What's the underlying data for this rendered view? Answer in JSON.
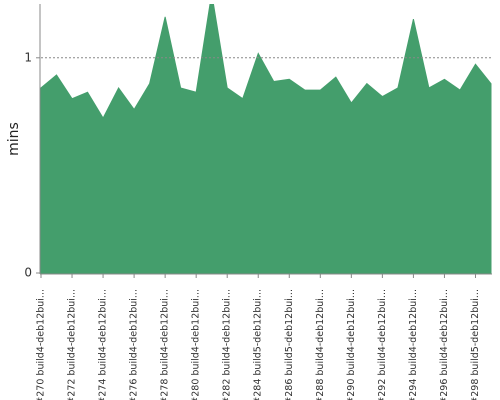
{
  "chart_data": {
    "type": "area",
    "y_label": "mins",
    "categories": [
      "#270 build4-deb12bui...",
      null,
      "#272 build4-deb12bui...",
      null,
      "#274 build4-deb12bui...",
      null,
      "#276 build4-deb12bui...",
      null,
      "#278 build4-deb12bui...",
      null,
      "#280 build4-deb12bui...",
      null,
      "#282 build4-deb12bui...",
      null,
      "#284 build5-deb12bui...",
      null,
      "#286 build5-deb12bui...",
      null,
      "#288 build4-deb12bui...",
      null,
      "#290 build4-deb12bui...",
      null,
      "#292 build4-deb12bui...",
      null,
      "#294 build4-deb12bui...",
      null,
      "#296 build4-deb12bui...",
      null,
      "#298 build5-deb12bui...",
      null
    ],
    "values": [
      0.86,
      0.92,
      0.81,
      0.84,
      0.72,
      0.86,
      0.76,
      0.88,
      1.19,
      0.86,
      0.84,
      1.3,
      0.86,
      0.81,
      1.02,
      0.89,
      0.9,
      0.85,
      0.85,
      0.91,
      0.79,
      0.88,
      0.82,
      0.86,
      1.18,
      0.86,
      0.9,
      0.85,
      0.97,
      0.88
    ],
    "color": "#449e6c",
    "ylim": [
      0,
      1.25
    ],
    "yticks": [
      0,
      1
    ],
    "grid": true
  }
}
